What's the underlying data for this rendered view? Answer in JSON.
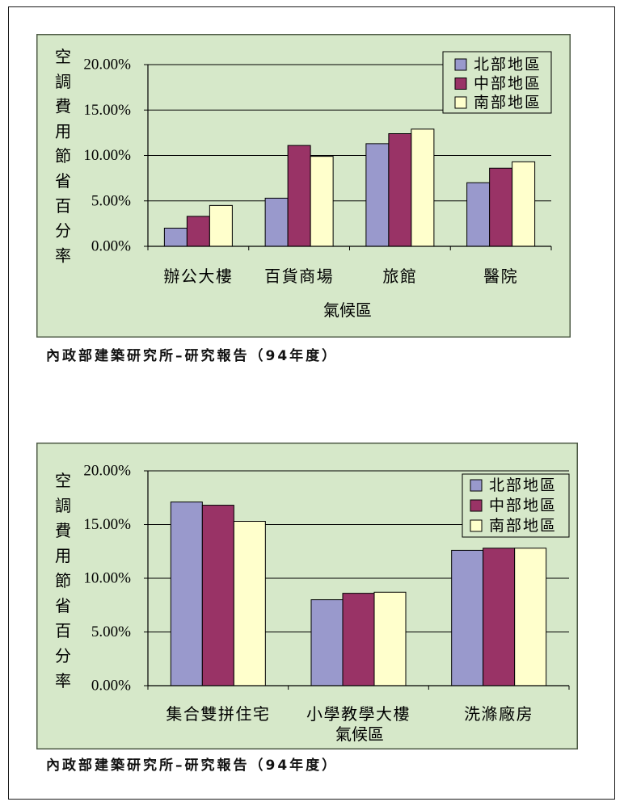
{
  "style": {
    "frame": "#1a1a1a",
    "panel_bg": "#d6e8c9",
    "panel_border": "#4d5a45",
    "axis": "#000000",
    "bar_outline": "#000000"
  },
  "chart_data": [
    {
      "type": "bar",
      "xlabel": "氣候區",
      "ylabel": "空調費用節省百分率",
      "ylim": [
        0,
        20
      ],
      "y_ticks": [
        0,
        5,
        10,
        15,
        20
      ],
      "y_tick_labels": [
        "0.00%",
        "5.00%",
        "10.00%",
        "15.00%",
        "20.00%"
      ],
      "grid": true,
      "legend": "top-right",
      "categories": [
        "辦公大樓",
        "百貨商場",
        "旅館",
        "醫院"
      ],
      "series": [
        {
          "name": "北部地區",
          "color": "#9999cc",
          "values": [
            2.0,
            5.3,
            11.3,
            7.0
          ]
        },
        {
          "name": "中部地區",
          "color": "#993366",
          "values": [
            3.3,
            11.1,
            12.4,
            8.6
          ]
        },
        {
          "name": "南部地區",
          "color": "#ffffcc",
          "values": [
            4.5,
            9.9,
            12.9,
            9.3
          ]
        }
      ],
      "source": "內政部建築研究所–研究報告（94年度）"
    },
    {
      "type": "bar",
      "xlabel": "氣候區",
      "ylabel": "空調費用節省百分率",
      "ylim": [
        0,
        20
      ],
      "y_ticks": [
        0,
        5,
        10,
        15,
        20
      ],
      "y_tick_labels": [
        "0.00%",
        "5.00%",
        "10.00%",
        "15.00%",
        "20.00%"
      ],
      "grid": true,
      "legend": "top-right",
      "categories": [
        "集合雙拼住宅",
        "小學教學大樓",
        "洗滌廠房"
      ],
      "series": [
        {
          "name": "北部地區",
          "color": "#9999cc",
          "values": [
            17.1,
            8.0,
            12.6
          ]
        },
        {
          "name": "中部地區",
          "color": "#993366",
          "values": [
            16.8,
            8.6,
            12.8
          ]
        },
        {
          "name": "南部地區",
          "color": "#ffffcc",
          "values": [
            15.3,
            8.7,
            12.8
          ]
        }
      ],
      "source": "內政部建築研究所–研究報告（94年度）"
    }
  ]
}
